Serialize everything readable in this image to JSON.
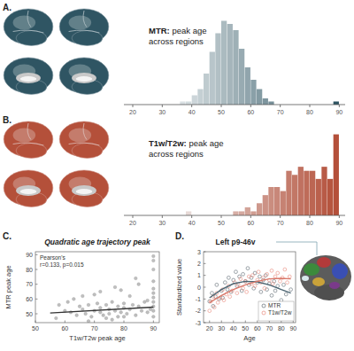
{
  "chart_data": [
    {
      "type": "histogram",
      "panel": "A.",
      "title": [
        "MTR: peak age",
        "across regions"
      ],
      "bins": [
        36,
        38,
        40,
        42,
        44,
        46,
        48,
        50,
        52,
        54,
        56,
        58,
        60,
        62,
        64,
        66,
        68,
        70,
        72,
        74,
        76,
        78,
        80,
        82,
        84,
        86,
        88,
        90
      ],
      "values": [
        1,
        1,
        3,
        5,
        10,
        17,
        23,
        27,
        26,
        24,
        18,
        12,
        8,
        5,
        2,
        1,
        0,
        0,
        0,
        0,
        0,
        0,
        0,
        0,
        0,
        0,
        1
      ],
      "color": "#2f5563",
      "xlim": [
        17,
        92
      ],
      "xticks": [
        20,
        30,
        40,
        50,
        60,
        70,
        80,
        90
      ],
      "ylim": [
        0,
        28
      ],
      "tick_labels": "x"
    },
    {
      "type": "histogram",
      "panel": "B.",
      "title": [
        "T1w/T2w: peak age",
        "across regions"
      ],
      "bins": [
        36,
        38,
        40,
        42,
        44,
        46,
        48,
        50,
        52,
        54,
        56,
        58,
        60,
        62,
        64,
        66,
        68,
        70,
        72,
        74,
        76,
        78,
        80,
        82,
        84,
        86,
        88,
        90
      ],
      "values": [
        0,
        1,
        0,
        0,
        0,
        0,
        0,
        0,
        0,
        1,
        1,
        2,
        1,
        3,
        5,
        7,
        7,
        6,
        11,
        10,
        12,
        11,
        11,
        9,
        12,
        9,
        20
      ],
      "color": "#b4503a",
      "xlim": [
        17,
        92
      ],
      "xticks": [
        20,
        30,
        40,
        50,
        60,
        70,
        80,
        90
      ],
      "ylim": [
        0,
        21
      ],
      "tick_labels": "x"
    },
    {
      "type": "scatter",
      "panel": "C.",
      "title": "Quadratic age trajectory peak",
      "annotations": [
        "Pearson's",
        "r=0.133, p=0.015"
      ],
      "xlabel": "T1w/T2w peak age",
      "ylabel": "MTR peak age",
      "xlim": [
        50,
        92
      ],
      "xticks": [
        50,
        60,
        70,
        80,
        90
      ],
      "ylim": [
        44,
        92
      ],
      "yticks": [
        50,
        60,
        70,
        80,
        90
      ],
      "grid": false,
      "series": [
        {
          "type": "scatter",
          "color": "#8a8a8a",
          "marker": "filled",
          "x": [
            57,
            60,
            62,
            64,
            65,
            66,
            67,
            68,
            69,
            70,
            71,
            72,
            72,
            73,
            74,
            75,
            75,
            76,
            77,
            78,
            78,
            79,
            80,
            80,
            81,
            82,
            83,
            84,
            85,
            86,
            87,
            88,
            90,
            90,
            90,
            90,
            90,
            90,
            90,
            90,
            90,
            90,
            90,
            63,
            70,
            76,
            82,
            88,
            68,
            74,
            79,
            85,
            58,
            61,
            66,
            72,
            77,
            84,
            89,
            80
          ],
          "values": [
            47,
            52,
            51,
            49,
            55,
            53,
            50,
            56,
            48,
            52,
            57,
            51,
            54,
            49,
            56,
            50,
            53,
            58,
            52,
            48,
            55,
            51,
            54,
            57,
            50,
            53,
            56,
            49,
            55,
            52,
            58,
            51,
            48,
            52,
            55,
            58,
            61,
            64,
            67,
            72,
            80,
            86,
            89,
            60,
            63,
            46,
            62,
            59,
            45,
            47,
            66,
            70,
            56,
            58,
            62,
            65,
            68,
            74,
            53,
            48
          ]
        },
        {
          "type": "line",
          "color": "#333333",
          "line_style": "solid",
          "x": [
            55,
            90
          ],
          "values": [
            50.5,
            54.5
          ]
        }
      ]
    },
    {
      "type": "scatter",
      "panel": "D.",
      "title": "Left p9-46v",
      "xlabel": "Age",
      "ylabel": "Standardized value",
      "xlim": [
        15,
        92
      ],
      "xticks": [
        20,
        30,
        40,
        50,
        60,
        70,
        80,
        90
      ],
      "ylim": [
        -3,
        3
      ],
      "yticks": [
        -3,
        -2,
        -1,
        0,
        1,
        2,
        3
      ],
      "legend": "lower right",
      "grid": false,
      "series": [
        {
          "name": "MTR",
          "type": "scatter",
          "color": "#5e6a72",
          "marker": "open",
          "x": [
            20,
            22,
            23,
            25,
            26,
            28,
            30,
            31,
            33,
            35,
            36,
            38,
            40,
            42,
            43,
            45,
            47,
            48,
            50,
            52,
            53,
            55,
            57,
            58,
            60,
            62,
            63,
            65,
            67,
            68,
            70,
            72,
            74,
            75,
            77,
            80,
            82,
            84,
            86,
            88
          ],
          "values": [
            -1.2,
            -0.5,
            -1.6,
            -0.8,
            0.2,
            -1.0,
            -0.3,
            -0.9,
            0.4,
            -0.2,
            0.8,
            -0.4,
            0.6,
            1.3,
            0.1,
            0.9,
            -0.3,
            1.1,
            0.5,
            1.6,
            0.2,
            0.8,
            -0.1,
            1.2,
            0.4,
            0.9,
            -0.4,
            0.6,
            1.0,
            -0.2,
            0.3,
            -0.7,
            0.5,
            -0.3,
            0.1,
            -1.1,
            0.2,
            -0.6,
            -1.4,
            -0.2
          ]
        },
        {
          "name": "T1w/T2w",
          "type": "scatter",
          "color": "#e98a7c",
          "marker": "open",
          "x": [
            20,
            21,
            23,
            24,
            26,
            27,
            29,
            31,
            32,
            34,
            36,
            37,
            39,
            41,
            43,
            44,
            46,
            48,
            50,
            51,
            53,
            55,
            56,
            58,
            60,
            61,
            63,
            65,
            66,
            68,
            70,
            72,
            73,
            75,
            77,
            79,
            81,
            83,
            85,
            87
          ],
          "values": [
            -2.0,
            -1.2,
            -0.8,
            -1.7,
            -0.5,
            -1.3,
            -0.9,
            -0.2,
            -1.1,
            -0.6,
            0.1,
            -0.8,
            -0.3,
            0.4,
            -0.5,
            0.2,
            0.7,
            -0.1,
            0.5,
            -0.4,
            0.9,
            0.3,
            1.0,
            0.1,
            0.6,
            1.3,
            0.4,
            0.8,
            -0.1,
            1.1,
            0.6,
            1.4,
            0.3,
            0.9,
            1.2,
            0.5,
            0.8,
            1.5,
            0.4,
            0.9
          ]
        },
        {
          "type": "line",
          "color": "#4b6471",
          "line_style": "solid",
          "x": [
            20,
            30,
            40,
            50,
            60,
            70,
            80,
            88
          ],
          "values": [
            -0.9,
            -0.2,
            0.3,
            0.5,
            0.45,
            0.2,
            -0.2,
            -0.5
          ]
        },
        {
          "type": "line",
          "color": "#d9786a",
          "line_style": "solid",
          "x": [
            20,
            30,
            40,
            50,
            60,
            70,
            80,
            88
          ],
          "values": [
            -1.3,
            -0.7,
            -0.2,
            0.2,
            0.5,
            0.7,
            0.75,
            0.7
          ]
        }
      ]
    }
  ]
}
